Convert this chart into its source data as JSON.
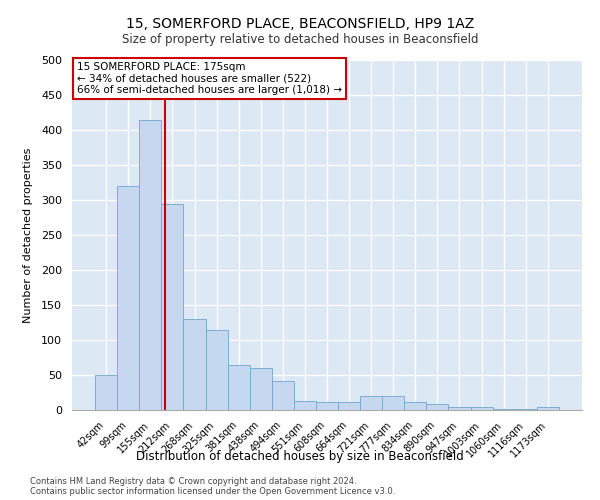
{
  "title": "15, SOMERFORD PLACE, BEACONSFIELD, HP9 1AZ",
  "subtitle": "Size of property relative to detached houses in Beaconsfield",
  "xlabel": "Distribution of detached houses by size in Beaconsfield",
  "ylabel": "Number of detached properties",
  "categories": [
    "42sqm",
    "99sqm",
    "155sqm",
    "212sqm",
    "268sqm",
    "325sqm",
    "381sqm",
    "438sqm",
    "494sqm",
    "551sqm",
    "608sqm",
    "664sqm",
    "721sqm",
    "777sqm",
    "834sqm",
    "890sqm",
    "947sqm",
    "1003sqm",
    "1060sqm",
    "1116sqm",
    "1173sqm"
  ],
  "values": [
    50,
    320,
    415,
    295,
    130,
    115,
    65,
    60,
    42,
    13,
    12,
    11,
    20,
    20,
    12,
    8,
    5,
    4,
    2,
    2,
    5
  ],
  "bar_color": "#c5d8ef",
  "bar_edge_color": "#6fa8d0",
  "vline_color": "#cc0000",
  "vline_pos": 2.65,
  "annotation_text": "15 SOMERFORD PLACE: 175sqm\n← 34% of detached houses are smaller (522)\n66% of semi-detached houses are larger (1,018) →",
  "annotation_box_color": "#ffffff",
  "annotation_box_edge_color": "#cc0000",
  "ylim": [
    0,
    500
  ],
  "yticks": [
    0,
    50,
    100,
    150,
    200,
    250,
    300,
    350,
    400,
    450,
    500
  ],
  "background_color": "#dde8f5",
  "footer_line1": "Contains HM Land Registry data © Crown copyright and database right 2024.",
  "footer_line2": "Contains public sector information licensed under the Open Government Licence v3.0."
}
